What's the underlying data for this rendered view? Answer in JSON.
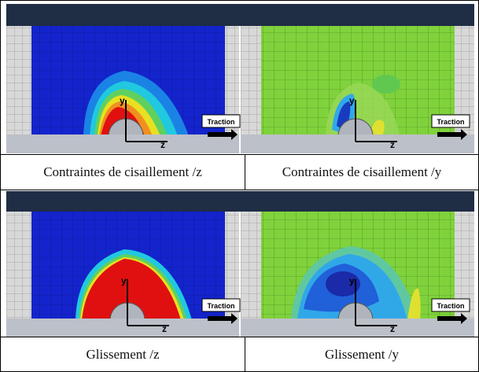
{
  "captions": {
    "top_left": "Contraintes de cisaillement /z",
    "top_right": "Contraintes de cisaillement /y",
    "bottom_left": "Glissement /z",
    "bottom_right": "Glissement /y"
  },
  "annotations": {
    "traction": "Traction",
    "axis_y": "y",
    "axis_z": "z"
  },
  "colors": {
    "header_band": "#1f2d45",
    "base_gray": "#bcc0c8",
    "deep_blue": "#1020c8",
    "green": "#7fd43a",
    "red": "#e01010",
    "yellow": "#e8e020",
    "cyan": "#30c8e8"
  }
}
